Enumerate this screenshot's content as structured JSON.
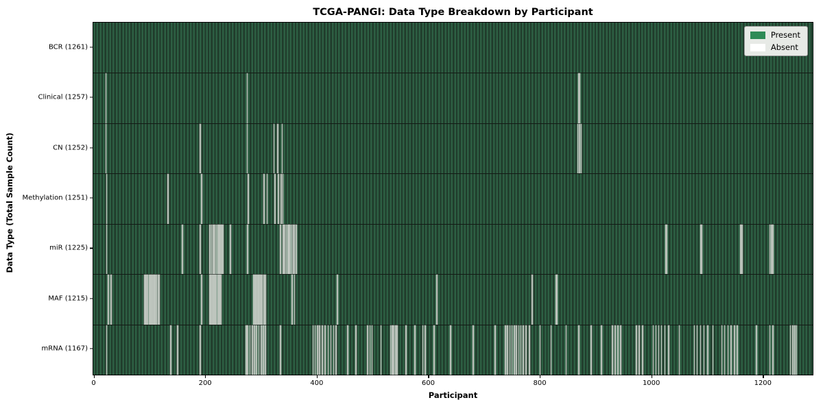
{
  "chart": {
    "title": "TCGA-PANGI: Data Type Breakdown by Participant",
    "xlabel": "Participant",
    "ylabel": "Data Type (Total Sample Count)"
  },
  "legend": {
    "present_label": "Present",
    "absent_label": "Absent",
    "present_color": "#2e8b57",
    "absent_color": "#ffffff"
  },
  "chart_data": {
    "type": "heatmap",
    "title": "TCGA-PANGI: Data Type Breakdown by Participant",
    "xlabel": "Participant",
    "ylabel": "Data Type (Total Sample Count)",
    "legend_position": "upper right",
    "grid": false,
    "cell_states": [
      "Present",
      "Absent"
    ],
    "participants_total": 1261,
    "x_axis": {
      "ticks": [
        0,
        200,
        400,
        600,
        800,
        1000,
        1200
      ],
      "max": 1290
    },
    "colors": {
      "present": "#2e8b57",
      "absent": "#ffffff",
      "stripe_light": "#2d5f43",
      "stripe_dark": "#203b2b",
      "absent_line": "#b7bfb7"
    },
    "rows": [
      {
        "data_type": "BCR",
        "sample_count": 1261,
        "label": "BCR (1261)",
        "absent": []
      },
      {
        "data_type": "Clinical",
        "sample_count": 1257,
        "label": "Clinical (1257)",
        "absent": [
          22,
          275,
          869,
          871
        ]
      },
      {
        "data_type": "CN",
        "sample_count": 1252,
        "label": "CN (1252)",
        "absent": [
          22,
          191,
          275,
          323,
          330,
          338,
          868,
          871,
          874
        ]
      },
      {
        "data_type": "Methylation",
        "sample_count": 1251,
        "label": "Methylation (1251)",
        "absent": [
          23,
          133,
          193,
          277,
          305,
          311,
          325,
          331,
          336,
          339
        ]
      },
      {
        "data_type": "miR",
        "sample_count": 1225,
        "label": "miR (1225)",
        "absent": [
          23,
          159,
          191,
          208,
          211,
          214,
          217,
          220,
          222,
          224,
          226,
          228,
          230,
          232,
          245,
          276,
          335,
          340,
          342,
          345,
          348,
          350,
          352,
          355,
          358,
          360,
          363,
          1025,
          1027,
          1088,
          1090,
          1160,
          1162,
          1212,
          1215,
          1218
        ]
      },
      {
        "data_type": "MAF",
        "sample_count": 1215,
        "label": "MAF (1215)",
        "absent": [
          26,
          31,
          91,
          93,
          95,
          97,
          99,
          101,
          103,
          105,
          107,
          109,
          111,
          113,
          115,
          117,
          193,
          208,
          210,
          212,
          214,
          216,
          218,
          220,
          222,
          224,
          226,
          228,
          286,
          288,
          290,
          292,
          294,
          296,
          298,
          300,
          302,
          305,
          308,
          356,
          360,
          437,
          615,
          786,
          829,
          831
        ]
      },
      {
        "data_type": "mRNA",
        "sample_count": 1167,
        "label": "mRNA (1167)",
        "absent": [
          23,
          138,
          150,
          191,
          273,
          276,
          280,
          284,
          288,
          292,
          296,
          300,
          304,
          308,
          335,
          393,
          397,
          401,
          405,
          410,
          415,
          420,
          425,
          430,
          434,
          455,
          470,
          491,
          495,
          499,
          515,
          532,
          535,
          538,
          541,
          544,
          560,
          576,
          590,
          594,
          610,
          640,
          680,
          720,
          738,
          742,
          746,
          750,
          754,
          758,
          762,
          766,
          770,
          775,
          781,
          800,
          820,
          847,
          870,
          892,
          910,
          930,
          935,
          940,
          945,
          973,
          978,
          984,
          1003,
          1008,
          1013,
          1018,
          1024,
          1031,
          1050,
          1077,
          1082,
          1088,
          1094,
          1101,
          1110,
          1126,
          1131,
          1137,
          1143,
          1149,
          1154,
          1188,
          1212,
          1218,
          1249,
          1253,
          1257,
          1260
        ]
      }
    ]
  }
}
